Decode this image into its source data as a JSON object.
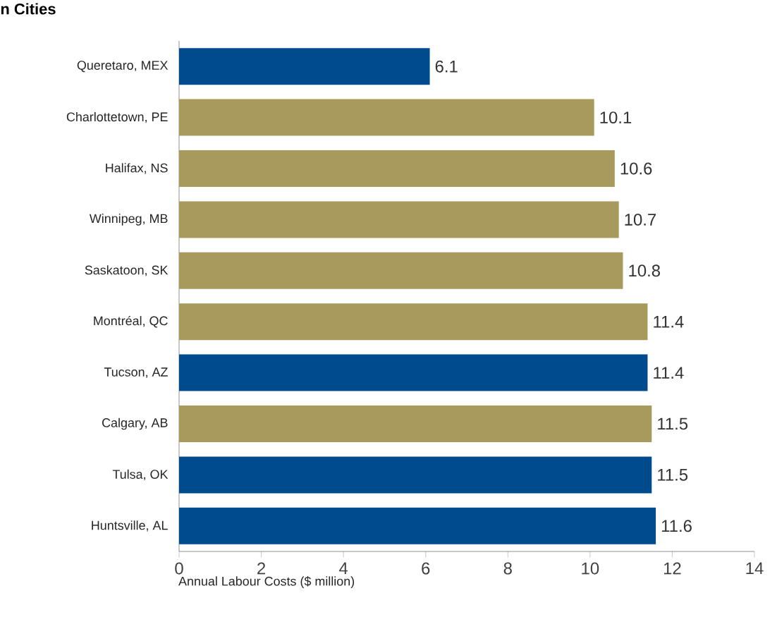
{
  "chart_data": {
    "type": "bar",
    "orientation": "horizontal",
    "title": "n Cities",
    "xlabel": "Annual Labour Costs ($ million)",
    "categories": [
      "Queretaro, MEX",
      "Charlottetown, PE",
      "Halifax, NS",
      "Winnipeg, MB",
      "Saskatoon, SK",
      "Montréal, QC",
      "Tucson, AZ",
      "Calgary, AB",
      "Tulsa, OK",
      "Huntsville, AL"
    ],
    "values": [
      6.1,
      10.1,
      10.6,
      10.7,
      10.8,
      11.4,
      11.4,
      11.5,
      11.5,
      11.6
    ],
    "colors": [
      "#004b8d",
      "#a89a5c",
      "#a89a5c",
      "#a89a5c",
      "#a89a5c",
      "#a89a5c",
      "#004b8d",
      "#a89a5c",
      "#004b8d",
      "#004b8d"
    ],
    "xlim": [
      0,
      14
    ],
    "xticks": [
      0,
      2,
      4,
      6,
      8,
      10,
      12,
      14
    ],
    "data_labels": true
  }
}
